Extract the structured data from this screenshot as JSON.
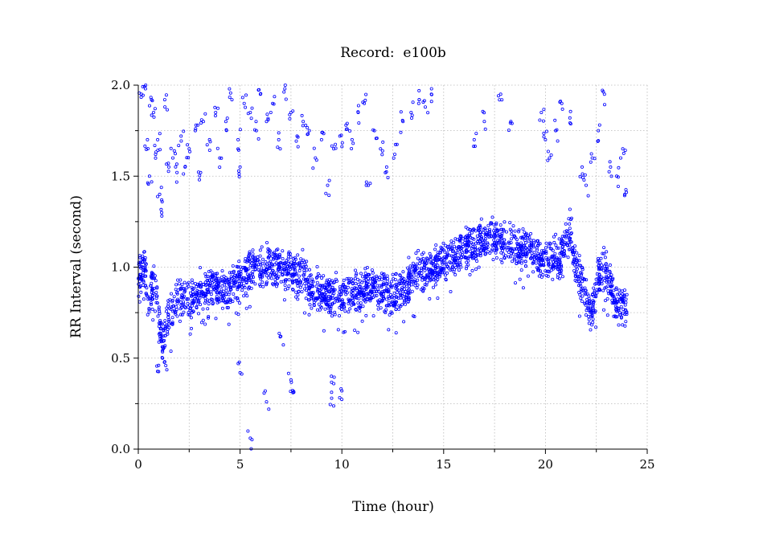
{
  "chart_data": {
    "type": "scatter",
    "title": "Record:  e100b",
    "xlabel": "Time (hour)",
    "ylabel": "RR Interval (second)",
    "xlim": [
      0,
      25
    ],
    "ylim": [
      0.0,
      2.0
    ],
    "xticks": [
      0,
      5,
      10,
      15,
      20,
      25
    ],
    "xtick_labels": [
      "0",
      "5",
      "10",
      "15",
      "20",
      "25"
    ],
    "yticks": [
      0.0,
      0.5,
      1.0,
      1.5,
      2.0
    ],
    "ytick_labels": [
      "0.0",
      "0.5",
      "1.0",
      "1.5",
      "2.0"
    ],
    "minor_xticks": [
      2.5,
      7.5,
      12.5,
      17.5,
      22.5
    ],
    "minor_yticks": [
      0.25,
      0.75,
      1.25,
      1.75
    ],
    "grid": true,
    "marker": "open-circle",
    "color": "#0000ff",
    "series": [
      {
        "trend": {
          "x": [
            0.0,
            0.3,
            0.5,
            0.8,
            1.0,
            1.2,
            1.5,
            2.0,
            2.5,
            3.0,
            3.5,
            4.0,
            4.5,
            5.0,
            5.5,
            6.0,
            6.5,
            7.0,
            7.5,
            8.0,
            8.5,
            9.0,
            9.5,
            10.0,
            10.5,
            11.0,
            11.5,
            12.0,
            12.5,
            13.0,
            13.5,
            14.0,
            14.5,
            15.0,
            15.5,
            16.0,
            16.5,
            17.0,
            17.5,
            18.0,
            18.5,
            19.0,
            19.5,
            20.0,
            20.3,
            20.6,
            21.0,
            21.2,
            21.5,
            22.0,
            22.3,
            22.6,
            23.0,
            23.3,
            23.6,
            24.0
          ],
          "y": [
            0.95,
            1.0,
            0.8,
            0.92,
            0.7,
            0.58,
            0.72,
            0.85,
            0.82,
            0.86,
            0.88,
            0.87,
            0.9,
            0.92,
            0.98,
            1.0,
            1.01,
            0.99,
            0.96,
            0.98,
            0.88,
            0.86,
            0.84,
            0.84,
            0.85,
            0.86,
            0.9,
            0.87,
            0.84,
            0.88,
            0.94,
            0.98,
            1.0,
            1.04,
            1.05,
            1.1,
            1.13,
            1.14,
            1.15,
            1.14,
            1.12,
            1.1,
            1.08,
            1.03,
            1.06,
            1.03,
            1.15,
            1.2,
            1.0,
            0.82,
            0.75,
            0.97,
            0.98,
            0.85,
            0.78,
            0.78
          ]
        },
        "outliers": [
          [
            0.15,
            1.95
          ],
          [
            0.35,
            1.98
          ],
          [
            0.45,
            1.7
          ],
          [
            0.55,
            1.5
          ],
          [
            0.65,
            1.92
          ],
          [
            0.75,
            1.85
          ],
          [
            0.85,
            1.62
          ],
          [
            0.95,
            1.7
          ],
          [
            1.05,
            1.4
          ],
          [
            1.15,
            1.3
          ],
          [
            1.3,
            1.92
          ],
          [
            1.5,
            1.55
          ],
          [
            1.7,
            1.6
          ],
          [
            1.9,
            1.52
          ],
          [
            2.1,
            1.72
          ],
          [
            2.3,
            1.55
          ],
          [
            2.5,
            1.65
          ],
          [
            2.8,
            1.75
          ],
          [
            3.0,
            1.48
          ],
          [
            3.2,
            1.8
          ],
          [
            3.5,
            1.7
          ],
          [
            3.8,
            1.85
          ],
          [
            4.0,
            1.6
          ],
          [
            4.3,
            1.8
          ],
          [
            4.6,
            1.92
          ],
          [
            4.9,
            1.7
          ],
          [
            5.0,
            1.55
          ],
          [
            5.2,
            1.9
          ],
          [
            5.5,
            1.85
          ],
          [
            5.8,
            1.75
          ],
          [
            6.0,
            1.95
          ],
          [
            6.3,
            1.8
          ],
          [
            6.6,
            1.9
          ],
          [
            6.9,
            1.7
          ],
          [
            7.2,
            1.98
          ],
          [
            7.5,
            1.85
          ],
          [
            7.8,
            1.72
          ],
          [
            8.1,
            1.8
          ],
          [
            8.4,
            1.75
          ],
          [
            8.7,
            1.6
          ],
          [
            9.0,
            1.7
          ],
          [
            9.3,
            1.45
          ],
          [
            9.6,
            1.65
          ],
          [
            9.9,
            1.72
          ],
          [
            10.2,
            1.78
          ],
          [
            10.5,
            1.7
          ],
          [
            10.8,
            1.85
          ],
          [
            11.1,
            1.9
          ],
          [
            11.3,
            1.45
          ],
          [
            11.6,
            1.75
          ],
          [
            11.9,
            1.65
          ],
          [
            12.2,
            1.55
          ],
          [
            12.6,
            1.62
          ],
          [
            13.0,
            1.8
          ],
          [
            13.4,
            1.85
          ],
          [
            13.8,
            1.92
          ],
          [
            14.1,
            1.88
          ],
          [
            14.4,
            1.95
          ],
          [
            16.5,
            1.7
          ],
          [
            17.0,
            1.8
          ],
          [
            17.8,
            1.95
          ],
          [
            18.3,
            1.8
          ],
          [
            19.8,
            1.85
          ],
          [
            20.0,
            1.7
          ],
          [
            20.2,
            1.6
          ],
          [
            20.5,
            1.75
          ],
          [
            20.8,
            1.9
          ],
          [
            21.2,
            1.82
          ],
          [
            21.8,
            1.55
          ],
          [
            22.0,
            1.45
          ],
          [
            22.3,
            1.6
          ],
          [
            22.6,
            1.75
          ],
          [
            22.9,
            1.95
          ],
          [
            23.2,
            1.55
          ],
          [
            23.5,
            1.5
          ],
          [
            23.8,
            1.65
          ],
          [
            23.9,
            1.4
          ],
          [
            5.0,
            0.42
          ],
          [
            5.5,
            0.06
          ],
          [
            6.3,
            0.26
          ],
          [
            7.0,
            0.62
          ],
          [
            7.5,
            0.38
          ],
          [
            7.6,
            0.31
          ],
          [
            9.5,
            0.28
          ],
          [
            10.0,
            0.32
          ],
          [
            9.6,
            0.36
          ],
          [
            1.0,
            0.46
          ],
          [
            1.3,
            0.48
          ]
        ]
      }
    ]
  }
}
